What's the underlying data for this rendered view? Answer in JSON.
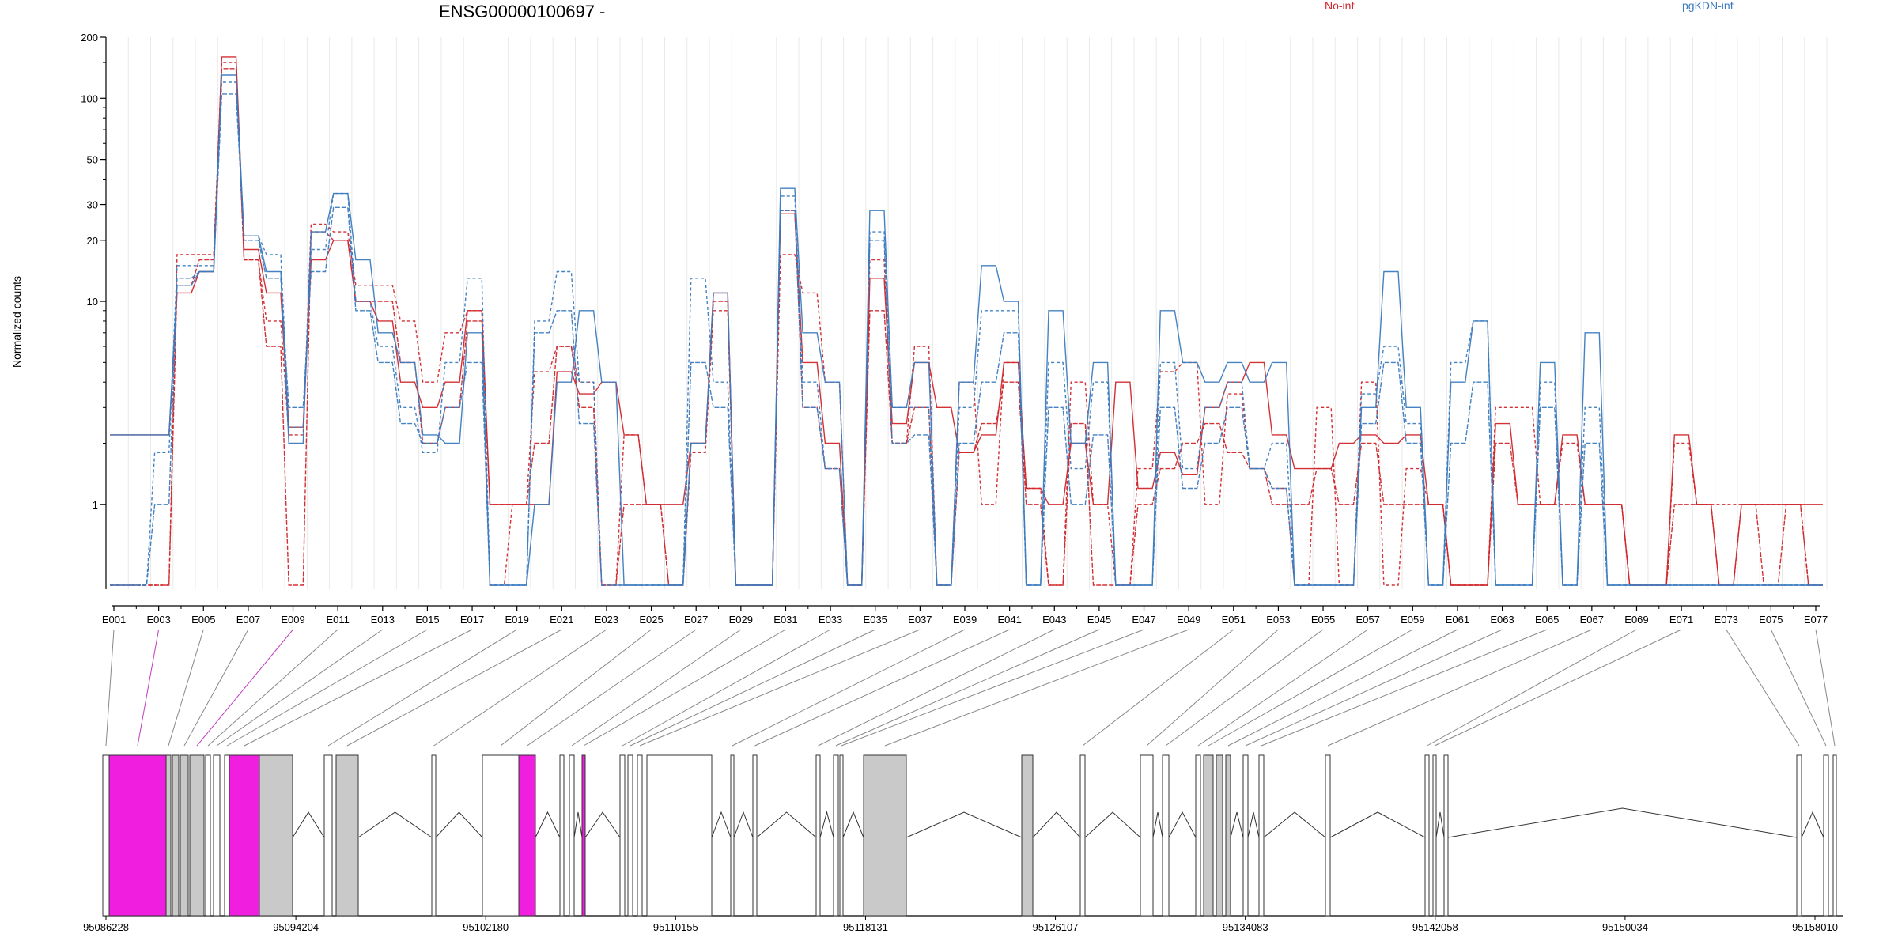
{
  "chart_data": {
    "type": "line",
    "title": "ENSG00000100697 -",
    "ylabel": "Normalized counts",
    "yscale": "log",
    "ylim": [
      0.4,
      200
    ],
    "yticks": [
      1,
      10,
      20,
      30,
      50,
      100,
      200
    ],
    "grid": "vertical",
    "legend": [
      {
        "name": "No-inf",
        "color": "#d0262b",
        "placement": "top-center"
      },
      {
        "name": "pgKDN-inf",
        "color": "#3b7bbf",
        "placement": "top-right"
      }
    ],
    "exon_labels": [
      "E001",
      "E003",
      "E005",
      "E007",
      "E009",
      "E011",
      "E013",
      "E015",
      "E017",
      "E019",
      "E021",
      "E023",
      "E025",
      "E027",
      "E029",
      "E031",
      "E033",
      "E035",
      "E037",
      "E039",
      "E041",
      "E043",
      "E045",
      "E047",
      "E049",
      "E051",
      "E053",
      "E055",
      "E057",
      "E059",
      "E061",
      "E063",
      "E065",
      "E067",
      "E069",
      "E071",
      "E073",
      "E075",
      "E077"
    ],
    "series": [
      {
        "group": "No-inf",
        "color": "#d0262b",
        "values": [
          2.2,
          2.2,
          2.2,
          11,
          14,
          160,
          18,
          11,
          2.4,
          16,
          20,
          10,
          8,
          4,
          3,
          4,
          9,
          1,
          1,
          1,
          4.5,
          3.5,
          4,
          2.2,
          1,
          1,
          2,
          11,
          0.4,
          0.4,
          27,
          5,
          2,
          0.4,
          13,
          2.5,
          5,
          3,
          1.8,
          2.2,
          5,
          1.2,
          1,
          2,
          1,
          4,
          1.2,
          1.8,
          1.4,
          3,
          4,
          5,
          2.2,
          1.5,
          1.5,
          2,
          2.2,
          2,
          2.2,
          1,
          0.4,
          0.4,
          2.5,
          1,
          1,
          2.2,
          1,
          1,
          0.4,
          0.4,
          2.2,
          1,
          0.4,
          1,
          1,
          1,
          1
        ]
      },
      {
        "group": "No-inf",
        "color": "#d0262b",
        "values": [
          0.4,
          0.4,
          0.4,
          17,
          17,
          150,
          16,
          8,
          2.2,
          24,
          22,
          12,
          12,
          8,
          4,
          7,
          9,
          0.4,
          1,
          4.5,
          6,
          4,
          0.4,
          2.2,
          1,
          0.4,
          1.8,
          9,
          0.4,
          0.4,
          17,
          11,
          4,
          0.4,
          16,
          2,
          6,
          0.4,
          4,
          1,
          5,
          1.2,
          0.4,
          4,
          1,
          0.4,
          1.5,
          4.5,
          5,
          1,
          3.5,
          1.5,
          1.2,
          0.4,
          3,
          0.4,
          4,
          0.4,
          1.5,
          1,
          0.4,
          0.4,
          3,
          3,
          1,
          2,
          1,
          1,
          0.4,
          0.4,
          2,
          1,
          1,
          1,
          1,
          1,
          0.4
        ]
      },
      {
        "group": "No-inf",
        "color": "#d0262b",
        "values": [
          0.4,
          0.4,
          0.4,
          12,
          16,
          140,
          16,
          6,
          0.4,
          22,
          20,
          10,
          10,
          5,
          2,
          3,
          8,
          1,
          1,
          2,
          6,
          3,
          0.4,
          1,
          1,
          0.4,
          2,
          10,
          0.4,
          0.4,
          28,
          3,
          1.5,
          0.4,
          9,
          2,
          3,
          0.4,
          1.8,
          2.5,
          4,
          1,
          0.4,
          2.5,
          0.4,
          0.4,
          1,
          1.5,
          2,
          2.5,
          1.8,
          1.5,
          1,
          1,
          1.5,
          1,
          2,
          1,
          1,
          1,
          0.4,
          0.4,
          2,
          1,
          1,
          1,
          1,
          1,
          0.4,
          0.4,
          1,
          1,
          0.4,
          1,
          0.4,
          1,
          0.4
        ]
      },
      {
        "group": "pgKDN-inf",
        "color": "#3b7bbf",
        "values": [
          2.2,
          2.2,
          2.2,
          12,
          14,
          130,
          21,
          14,
          2,
          22,
          34,
          16,
          7,
          5,
          2.2,
          2,
          7,
          0.4,
          0.4,
          1,
          4,
          9,
          4,
          0.4,
          0.4,
          0.4,
          2,
          11,
          0.4,
          0.4,
          36,
          7,
          4,
          0.4,
          28,
          3,
          5,
          0.4,
          4,
          15,
          10,
          0.4,
          9,
          2,
          5,
          0.4,
          0.4,
          9,
          5,
          4,
          5,
          4,
          5,
          0.4,
          0.4,
          0.4,
          3,
          14,
          3,
          0.4,
          4,
          8,
          0.4,
          0.4,
          5,
          0.4,
          7,
          0.4,
          0.4,
          0.4,
          0.4,
          0.4,
          0.4,
          0.4,
          0.4,
          0.4,
          0.4
        ]
      },
      {
        "group": "pgKDN-inf",
        "color": "#3b7bbf",
        "values": [
          0.4,
          0.4,
          1.8,
          15,
          15,
          120,
          21,
          17,
          2.4,
          18,
          34,
          10,
          6,
          3,
          1.8,
          5,
          13,
          0.4,
          0.4,
          8,
          14,
          4,
          0.4,
          0.4,
          0.4,
          0.4,
          13,
          4,
          0.4,
          0.4,
          33,
          4,
          1.5,
          0.4,
          22,
          3,
          3,
          0.4,
          3,
          9,
          9,
          0.4,
          5,
          1.5,
          4,
          0.4,
          0.4,
          5,
          1.5,
          3,
          4,
          1.5,
          2,
          0.4,
          0.4,
          0.4,
          3.5,
          6,
          2.5,
          0.4,
          5,
          8,
          0.4,
          0.4,
          4,
          0.4,
          3,
          0.4,
          0.4,
          0.4,
          0.4,
          0.4,
          0.4,
          0.4,
          0.4,
          0.4,
          0.4
        ]
      },
      {
        "group": "pgKDN-inf",
        "color": "#3b7bbf",
        "values": [
          0.4,
          0.4,
          1,
          13,
          14,
          105,
          20,
          13,
          3,
          14,
          29,
          9,
          5,
          2.5,
          2,
          3,
          5,
          0.4,
          0.4,
          7,
          9,
          2.5,
          0.4,
          0.4,
          0.4,
          0.4,
          5,
          3,
          0.4,
          0.4,
          28,
          3,
          1.5,
          0.4,
          20,
          2,
          2.2,
          0.4,
          2,
          4,
          7,
          0.4,
          3,
          1,
          2.2,
          0.4,
          0.4,
          3,
          1.2,
          2,
          3,
          1.5,
          1.2,
          0.4,
          0.4,
          0.4,
          2.5,
          5,
          2,
          0.4,
          2,
          4,
          0.4,
          0.4,
          3,
          0.4,
          2,
          0.4,
          0.4,
          0.4,
          0.4,
          0.4,
          0.4,
          0.4,
          0.4,
          0.4,
          0.4
        ]
      }
    ],
    "genomic_axis": {
      "ticks": [
        "95086228",
        "95094204",
        "95102180",
        "95110155",
        "95118131",
        "95126107",
        "95134083",
        "95142058",
        "95150034",
        "95158010"
      ]
    }
  }
}
